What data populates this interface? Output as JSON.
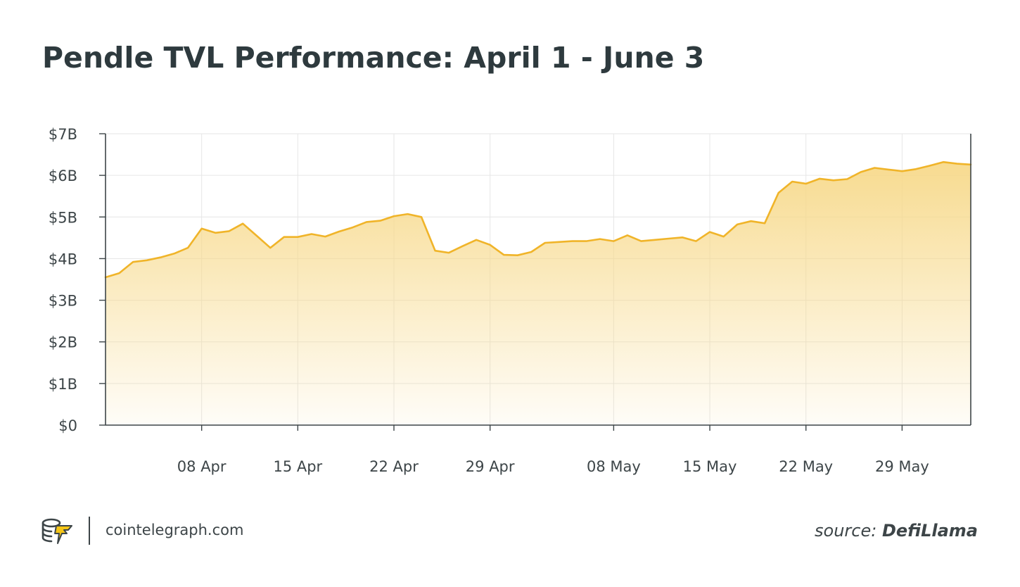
{
  "title": "Pendle TVL Performance: April 1 - June 3",
  "chart_data": {
    "type": "area",
    "title": "Pendle TVL Performance: April 1 - June 3",
    "xlabel": "",
    "ylabel": "",
    "y_unit": "$B",
    "ylim": [
      0,
      7
    ],
    "y_ticks": [
      0,
      1,
      2,
      3,
      4,
      5,
      6,
      7
    ],
    "y_tick_labels": [
      "$0",
      "$1B",
      "$2B",
      "$3B",
      "$4B",
      "$5B",
      "$6B",
      "$7B"
    ],
    "xlim": [
      "2024-04-01",
      "2024-06-03"
    ],
    "x_ticks": [
      "2024-04-08",
      "2024-04-15",
      "2024-04-22",
      "2024-04-29",
      "2024-05-08",
      "2024-05-15",
      "2024-05-22",
      "2024-05-29"
    ],
    "x_tick_labels": [
      "08 Apr",
      "15 Apr",
      "22 Apr",
      "29 Apr",
      "08 May",
      "15 May",
      "22 May",
      "29 May"
    ],
    "grid": true,
    "legend": "none",
    "line_color": "#f0b429",
    "fill_color": "#f7d98a",
    "x": [
      "2024-04-01",
      "2024-04-02",
      "2024-04-03",
      "2024-04-04",
      "2024-04-05",
      "2024-04-06",
      "2024-04-07",
      "2024-04-08",
      "2024-04-09",
      "2024-04-10",
      "2024-04-11",
      "2024-04-12",
      "2024-04-13",
      "2024-04-14",
      "2024-04-15",
      "2024-04-16",
      "2024-04-17",
      "2024-04-18",
      "2024-04-19",
      "2024-04-20",
      "2024-04-21",
      "2024-04-22",
      "2024-04-23",
      "2024-04-24",
      "2024-04-25",
      "2024-04-26",
      "2024-04-27",
      "2024-04-28",
      "2024-04-29",
      "2024-04-30",
      "2024-05-01",
      "2024-05-02",
      "2024-05-03",
      "2024-05-04",
      "2024-05-05",
      "2024-05-06",
      "2024-05-07",
      "2024-05-08",
      "2024-05-09",
      "2024-05-10",
      "2024-05-11",
      "2024-05-12",
      "2024-05-13",
      "2024-05-14",
      "2024-05-15",
      "2024-05-16",
      "2024-05-17",
      "2024-05-18",
      "2024-05-19",
      "2024-05-20",
      "2024-05-21",
      "2024-05-22",
      "2024-05-23",
      "2024-05-24",
      "2024-05-25",
      "2024-05-26",
      "2024-05-27",
      "2024-05-28",
      "2024-05-29",
      "2024-05-30",
      "2024-05-31",
      "2024-06-01",
      "2024-06-02",
      "2024-06-03"
    ],
    "series": [
      {
        "values": [
          3.55,
          3.65,
          3.92,
          3.96,
          4.03,
          4.12,
          4.26,
          4.72,
          4.62,
          4.66,
          4.84,
          4.55,
          4.26,
          4.52,
          4.52,
          4.59,
          4.53,
          4.65,
          4.75,
          4.88,
          4.91,
          5.02,
          5.07,
          5.0,
          4.19,
          4.14,
          4.3,
          4.45,
          4.33,
          4.09,
          4.08,
          4.16,
          4.38,
          4.4,
          4.42,
          4.42,
          4.47,
          4.42,
          4.56,
          4.42,
          4.45,
          4.48,
          4.51,
          4.42,
          4.64,
          4.53,
          4.82,
          4.9,
          4.85,
          5.58,
          5.85,
          5.8,
          5.92,
          5.88,
          5.91,
          6.08,
          6.18,
          6.14,
          6.1,
          6.15,
          6.23,
          6.32,
          6.28,
          6.26
        ]
      }
    ]
  },
  "footer": {
    "site": "cointelegraph.com",
    "source_prefix": "source:",
    "source_name": "DefiLlama",
    "logo_icon": "cointelegraph-logo-icon"
  }
}
